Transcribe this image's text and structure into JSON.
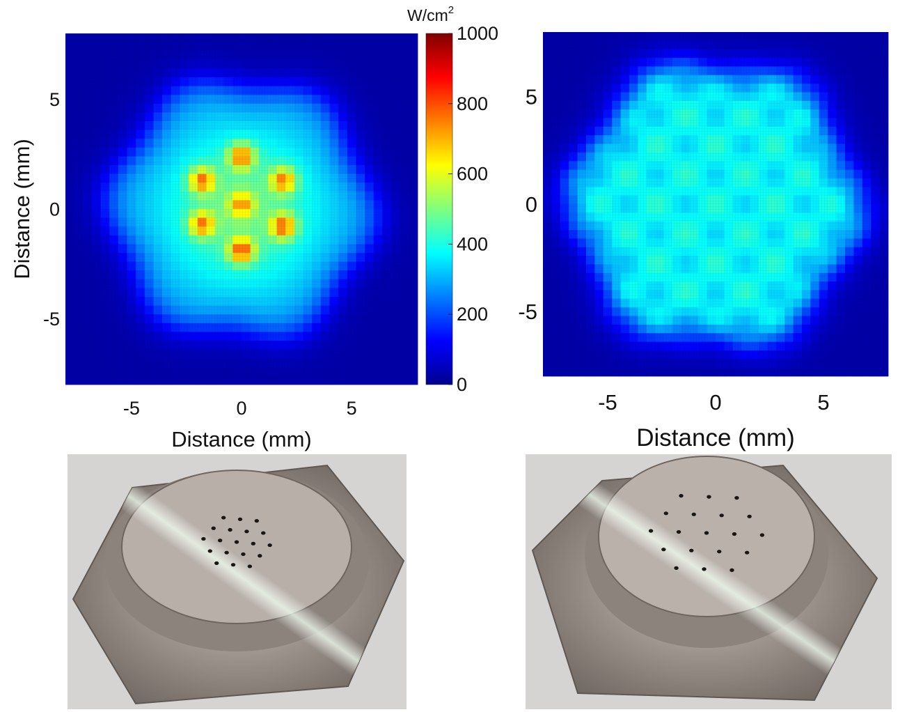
{
  "chart_data": [
    {
      "type": "heatmap",
      "panel": "left",
      "xlabel": "Distance (mm)",
      "ylabel": "Distance (mm)",
      "xlim": [
        -8,
        8
      ],
      "ylim": [
        -8,
        8
      ],
      "xticks": [
        -5,
        0,
        5
      ],
      "yticks": [
        -5,
        0,
        5
      ],
      "colorbar": {
        "label": "W/cm",
        "label_superscript": "2",
        "range": [
          0,
          1000
        ],
        "ticks": [
          0,
          200,
          400,
          600,
          800,
          1000
        ],
        "colormap": "jet"
      },
      "envelope": {
        "radius": 5.8,
        "base_value": 240
      },
      "hotspots": [
        {
          "x": 0.0,
          "y": 2.4,
          "value": 860
        },
        {
          "x": -1.8,
          "y": 1.3,
          "value": 850
        },
        {
          "x": 1.9,
          "y": 1.3,
          "value": 840
        },
        {
          "x": -1.8,
          "y": -0.7,
          "value": 830
        },
        {
          "x": 1.9,
          "y": -0.8,
          "value": 860
        },
        {
          "x": 0.0,
          "y": -1.9,
          "value": 870
        },
        {
          "x": 0.0,
          "y": 0.2,
          "value": 760
        }
      ]
    },
    {
      "type": "heatmap",
      "panel": "right",
      "xlabel": "Distance (mm)",
      "ylabel": "",
      "xlim": [
        -8,
        8
      ],
      "ylim": [
        -8,
        8
      ],
      "xticks": [
        -5,
        0,
        5
      ],
      "yticks": [
        -5,
        0,
        5
      ],
      "envelope": {
        "radius": 6.5,
        "base_value": 340
      },
      "colormap": "jet",
      "colorbar_range": [
        0,
        1000
      ]
    }
  ],
  "photos": [
    {
      "panel": "left",
      "holes": 19,
      "colors": {
        "metal": "#a59c95",
        "background": "#d4d2d0"
      }
    },
    {
      "panel": "right",
      "holes": 19,
      "colors": {
        "metal": "#a59c95",
        "background": "#d4d2d0"
      }
    }
  ]
}
